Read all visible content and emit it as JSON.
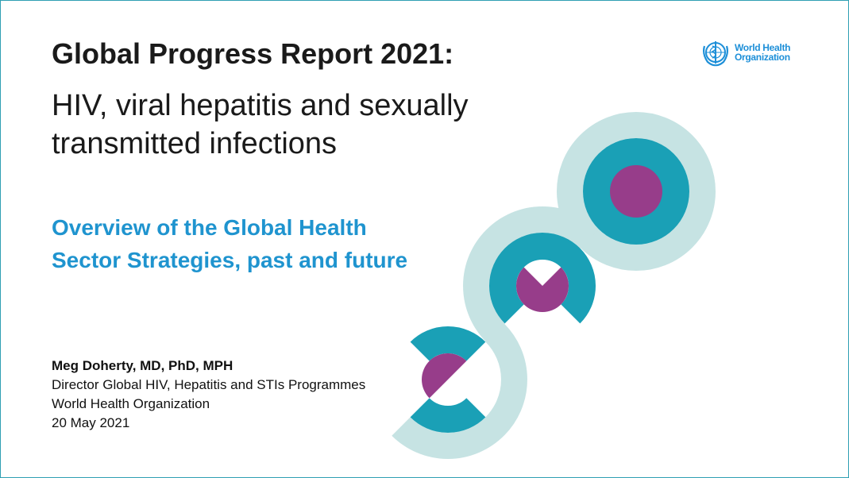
{
  "title": "Global Progress Report 2021:",
  "subtitle_lines": [
    "HIV, viral hepatitis and sexually",
    "transmitted infections"
  ],
  "overview_lines": [
    "Overview of the Global Health",
    "Sector Strategies, past and future"
  ],
  "author": {
    "name": "Meg Doherty, MD, PhD, MPH",
    "role": "Director Global HIV, Hepatitis and STIs Programmes",
    "organization": "World Health Organization",
    "date": "20 May 2021"
  },
  "logo": {
    "line1": "World Health",
    "line2": "Organization",
    "icon": "who-emblem-icon"
  },
  "colors": {
    "light_teal": "#c6e3e3",
    "teal": "#1aa0b6",
    "purple": "#973d8a",
    "blue_text": "#1f94cf",
    "logo_blue": "#1d8fd8"
  }
}
